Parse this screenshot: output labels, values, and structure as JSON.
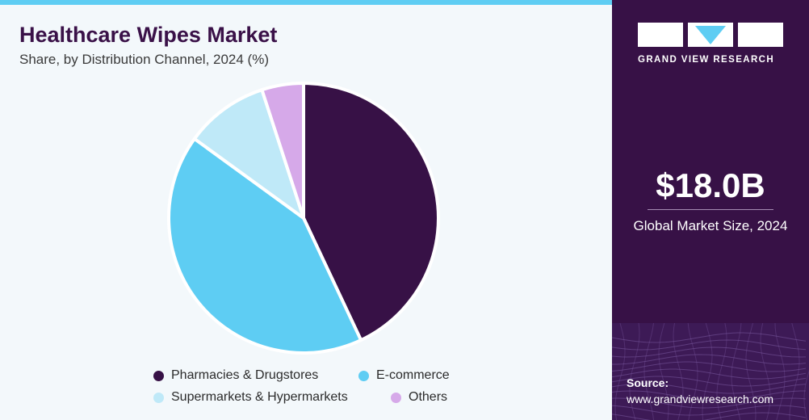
{
  "header": {
    "title": "Healthcare Wipes Market",
    "subtitle": "Share, by Distribution Channel, 2024 (%)"
  },
  "chart_data": {
    "type": "pie",
    "title": "Healthcare Wipes Market",
    "subtitle": "Share, by Distribution Channel, 2024 (%)",
    "categories": [
      "Pharmacies & Drugstores",
      "E-commerce",
      "Supermarkets & Hypermarkets",
      "Others"
    ],
    "values": [
      43,
      42,
      10,
      5
    ],
    "colors": [
      "#371146",
      "#5ecdf3",
      "#bfe9f8",
      "#d6a9e9"
    ],
    "legend_position": "bottom",
    "start_angle": "12 o'clock, clockwise"
  },
  "legend": {
    "items": [
      {
        "label": "Pharmacies & Drugstores",
        "color": "#371146"
      },
      {
        "label": "E-commerce",
        "color": "#5ecdf3"
      },
      {
        "label": "Supermarkets & Hypermarkets",
        "color": "#bfe9f8"
      },
      {
        "label": "Others",
        "color": "#d6a9e9"
      }
    ]
  },
  "sidebar": {
    "brand": "GRAND VIEW RESEARCH",
    "logo_icon": "gvr-logo-icon",
    "market_size_value": "$18.0B",
    "market_size_label": "Global Market Size, 2024",
    "source_label": "Source:",
    "source_url": "www.grandviewresearch.com"
  },
  "colors": {
    "accent_bar": "#5ecdf3",
    "sidebar_bg": "#371146",
    "title": "#3a1148"
  }
}
